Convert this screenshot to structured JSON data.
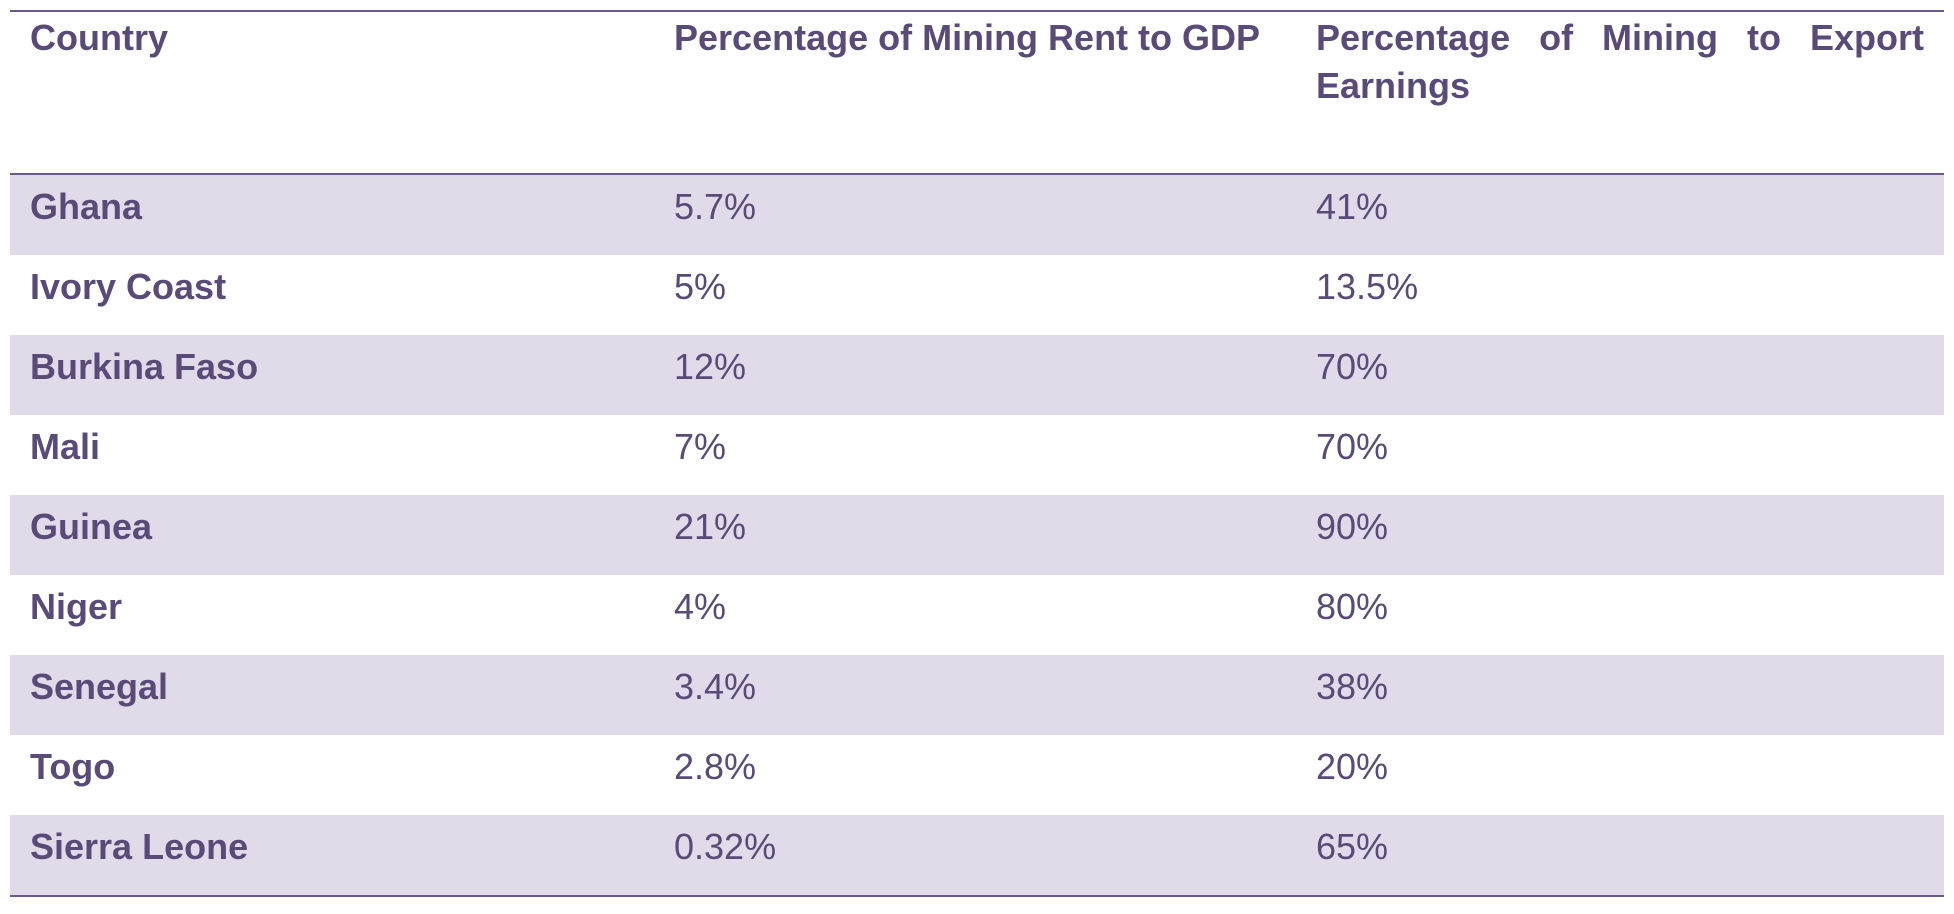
{
  "table": {
    "headers": [
      "Country",
      "Percentage of Mining Rent  to GDP",
      "Percentage of Mining to Export Earnings"
    ],
    "rows": [
      {
        "country": "Ghana",
        "rent_gdp": "5.7%",
        "export": "41%"
      },
      {
        "country": "Ivory Coast",
        "rent_gdp": "5%",
        "export": "13.5%"
      },
      {
        "country": "Burkina Faso",
        "rent_gdp": "12%",
        "export": "70%"
      },
      {
        "country": "Mali",
        "rent_gdp": "7%",
        "export": "70%"
      },
      {
        "country": "Guinea",
        "rent_gdp": "21%",
        "export": "90%"
      },
      {
        "country": "Niger",
        "rent_gdp": "4%",
        "export": "80%"
      },
      {
        "country": "Senegal",
        "rent_gdp": "3.4%",
        "export": "38%"
      },
      {
        "country": "Togo",
        "rent_gdp": "2.8%",
        "export": "20%"
      },
      {
        "country": "Sierra Leone",
        "rent_gdp": "0.32%",
        "export": "65%"
      }
    ]
  },
  "colors": {
    "text": "#5a4a78",
    "rule": "#6b5a8a",
    "band": "#e0dae9"
  }
}
